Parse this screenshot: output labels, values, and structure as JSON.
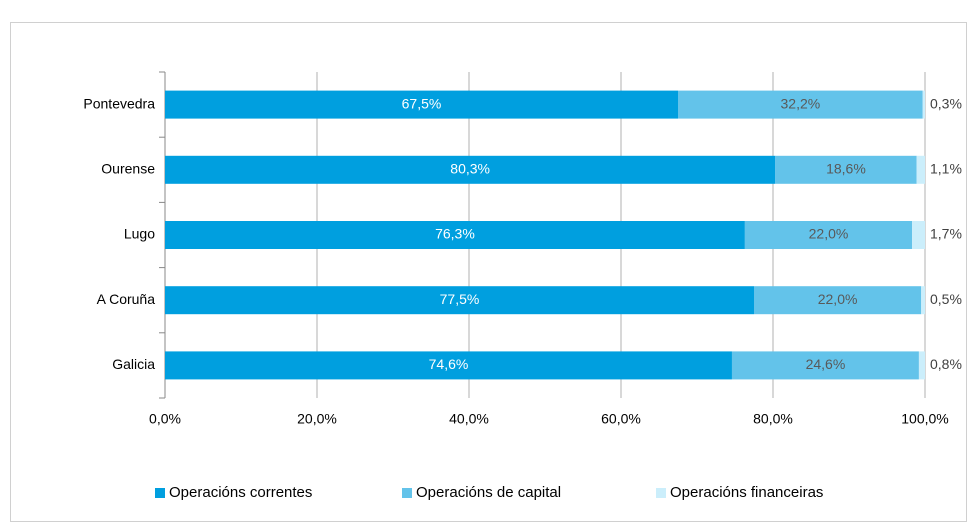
{
  "chart_data": {
    "type": "stacked_hbar",
    "categories": [
      "Pontevedra",
      "Ourense",
      "Lugo",
      "A Coruña",
      "Galicia"
    ],
    "series": [
      {
        "name": "Operacións correntes",
        "color": "#009fdf",
        "values": [
          67.5,
          80.3,
          76.3,
          77.5,
          74.6
        ],
        "value_labels": [
          "67,5%",
          "80,3%",
          "76,3%",
          "77,5%",
          "74,6%"
        ]
      },
      {
        "name": "Operacións de capital",
        "color": "#63c3ea",
        "values": [
          32.2,
          18.6,
          22.0,
          22.0,
          24.6
        ],
        "value_labels": [
          "32,2%",
          "18,6%",
          "22,0%",
          "22,0%",
          "24,6%"
        ]
      },
      {
        "name": "Operacións financeiras",
        "color": "#cbeefb",
        "values": [
          0.3,
          1.1,
          1.7,
          0.5,
          0.8
        ],
        "value_labels": [
          "0,3%",
          "1,1%",
          "1,7%",
          "0,5%",
          "0,8%"
        ]
      }
    ],
    "xlim": [
      0,
      100
    ],
    "xticks": [
      {
        "value": 0,
        "label": "0,0%"
      },
      {
        "value": 20,
        "label": "20,0%"
      },
      {
        "value": 40,
        "label": "40,0%"
      },
      {
        "value": 60,
        "label": "60,0%"
      },
      {
        "value": 80,
        "label": "80,0%"
      },
      {
        "value": 100,
        "label": "100,0%"
      }
    ],
    "grid": true,
    "legend": "bottom"
  }
}
